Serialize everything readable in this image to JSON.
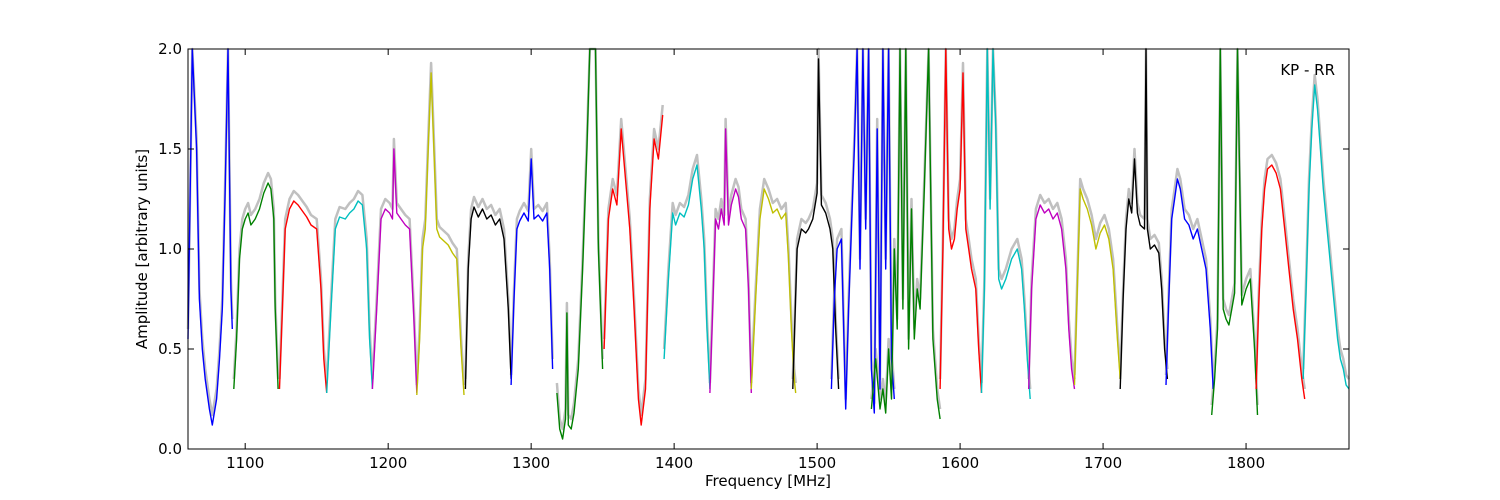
{
  "chart_data": {
    "type": "line",
    "title": "",
    "annotation": "KP - RR",
    "xlabel": "Frequency [MHz]",
    "ylabel": "Amplitude [arbitrary units]",
    "xlim": [
      1060,
      1872
    ],
    "ylim": [
      0.0,
      2.0
    ],
    "x_ticks": [
      1100,
      1200,
      1300,
      1400,
      1500,
      1600,
      1700,
      1800
    ],
    "x_tick_labels": [
      "1100",
      "1200",
      "1300",
      "1400",
      "1500",
      "1600",
      "1700",
      "1800"
    ],
    "y_ticks": [
      0.0,
      0.5,
      1.0,
      1.5,
      2.0
    ],
    "y_tick_labels": [
      "0.0",
      "0.5",
      "1.0",
      "1.5",
      "2.0"
    ],
    "grid": false,
    "legend": "none",
    "background_trace_color": "#c0c0c0",
    "series": [
      {
        "color": "#0000ff",
        "x": [
          1060,
          1063,
          1066,
          1068,
          1070,
          1072,
          1075,
          1077,
          1080,
          1082,
          1084,
          1086,
          1088,
          1090,
          1091
        ],
        "y": [
          0.55,
          2.0,
          1.5,
          0.75,
          0.5,
          0.35,
          0.2,
          0.12,
          0.25,
          0.45,
          0.7,
          1.3,
          2.0,
          0.8,
          0.6
        ]
      },
      {
        "color": "#008000",
        "x": [
          1092,
          1094,
          1096,
          1098,
          1100,
          1102,
          1104,
          1107,
          1110,
          1113,
          1116,
          1118,
          1120,
          1121,
          1123
        ],
        "y": [
          0.3,
          0.55,
          0.95,
          1.1,
          1.15,
          1.18,
          1.12,
          1.15,
          1.2,
          1.28,
          1.33,
          1.3,
          1.15,
          0.7,
          0.3
        ]
      },
      {
        "color": "#ff0000",
        "x": [
          1124,
          1126,
          1128,
          1131,
          1134,
          1137,
          1140,
          1143,
          1146,
          1150,
          1153,
          1155,
          1157
        ],
        "y": [
          0.3,
          0.7,
          1.1,
          1.2,
          1.24,
          1.22,
          1.19,
          1.16,
          1.12,
          1.1,
          0.8,
          0.45,
          0.28
        ]
      },
      {
        "color": "#00bfbf",
        "x": [
          1157,
          1160,
          1163,
          1166,
          1170,
          1173,
          1176,
          1179,
          1182,
          1185,
          1187,
          1189
        ],
        "y": [
          0.28,
          0.7,
          1.1,
          1.16,
          1.15,
          1.18,
          1.2,
          1.24,
          1.22,
          1.0,
          0.55,
          0.3
        ]
      },
      {
        "color": "#bf00bf",
        "x": [
          1189,
          1192,
          1195,
          1198,
          1201,
          1203,
          1204,
          1206,
          1209,
          1212,
          1215,
          1218,
          1220
        ],
        "y": [
          0.3,
          0.7,
          1.15,
          1.2,
          1.18,
          1.15,
          1.5,
          1.18,
          1.15,
          1.12,
          1.1,
          0.65,
          0.28
        ]
      },
      {
        "color": "#bfbf00",
        "x": [
          1220,
          1222,
          1224,
          1226,
          1228,
          1230,
          1232,
          1234,
          1236,
          1239,
          1242,
          1245,
          1248,
          1251,
          1253
        ],
        "y": [
          0.27,
          0.55,
          1.0,
          1.1,
          1.5,
          1.88,
          1.5,
          1.1,
          1.06,
          1.04,
          1.02,
          0.98,
          0.95,
          0.5,
          0.27
        ]
      },
      {
        "color": "#000000",
        "x": [
          1254,
          1256,
          1258,
          1260,
          1263,
          1266,
          1269,
          1272,
          1275,
          1278,
          1281,
          1284,
          1286
        ],
        "y": [
          0.3,
          0.9,
          1.15,
          1.21,
          1.16,
          1.2,
          1.15,
          1.17,
          1.12,
          1.15,
          1.05,
          0.7,
          0.35
        ]
      },
      {
        "color": "#0000ff",
        "x": [
          1286,
          1288,
          1290,
          1292,
          1295,
          1298,
          1300,
          1302,
          1305,
          1308,
          1311,
          1313,
          1315
        ],
        "y": [
          0.32,
          0.75,
          1.1,
          1.14,
          1.18,
          1.14,
          1.45,
          1.15,
          1.17,
          1.14,
          1.18,
          0.9,
          0.4
        ]
      },
      {
        "color": "#008000",
        "x": [
          1318,
          1320,
          1322,
          1324,
          1325,
          1326,
          1328,
          1330,
          1333,
          1336,
          1339,
          1341,
          1343,
          1345,
          1347,
          1350
        ],
        "y": [
          0.28,
          0.1,
          0.05,
          0.15,
          0.68,
          0.12,
          0.1,
          0.18,
          0.4,
          0.9,
          1.5,
          2.0,
          2.0,
          2.0,
          1.0,
          0.4
        ]
      },
      {
        "color": "#ff0000",
        "x": [
          1351,
          1354,
          1357,
          1360,
          1363,
          1366,
          1369,
          1372,
          1375,
          1377,
          1380,
          1383,
          1386,
          1389,
          1392
        ],
        "y": [
          0.5,
          1.15,
          1.3,
          1.22,
          1.6,
          1.35,
          1.1,
          0.7,
          0.25,
          0.12,
          0.3,
          1.2,
          1.55,
          1.45,
          1.67
        ]
      },
      {
        "color": "#00bfbf",
        "x": [
          1393,
          1396,
          1399,
          1401,
          1404,
          1407,
          1410,
          1413,
          1416,
          1419,
          1421,
          1423,
          1425
        ],
        "y": [
          0.45,
          0.85,
          1.18,
          1.12,
          1.18,
          1.16,
          1.22,
          1.35,
          1.42,
          1.2,
          1.0,
          0.6,
          0.3
        ]
      },
      {
        "color": "#bf00bf",
        "x": [
          1425,
          1427,
          1429,
          1431,
          1433,
          1435,
          1436,
          1438,
          1440,
          1443,
          1445,
          1447,
          1450,
          1452,
          1454
        ],
        "y": [
          0.28,
          0.7,
          1.15,
          1.1,
          1.2,
          1.12,
          1.6,
          1.12,
          1.22,
          1.3,
          1.26,
          1.15,
          1.1,
          0.8,
          0.28
        ]
      },
      {
        "color": "#bfbf00",
        "x": [
          1454,
          1457,
          1460,
          1463,
          1466,
          1469,
          1472,
          1475,
          1478,
          1480,
          1482,
          1484,
          1485
        ],
        "y": [
          0.3,
          0.75,
          1.15,
          1.3,
          1.25,
          1.18,
          1.2,
          1.15,
          1.18,
          0.95,
          0.6,
          0.35,
          0.28
        ]
      },
      {
        "color": "#000000",
        "x": [
          1483,
          1486,
          1489,
          1492,
          1494,
          1497,
          1500,
          1501,
          1503,
          1506,
          1509,
          1511,
          1513,
          1515
        ],
        "y": [
          0.3,
          1.0,
          1.1,
          1.08,
          1.1,
          1.15,
          1.28,
          1.95,
          1.22,
          1.18,
          1.1,
          1.0,
          0.6,
          0.3
        ]
      },
      {
        "color": "#0000ff",
        "x": [
          1510,
          1512,
          1514,
          1517,
          1520,
          1522,
          1524,
          1526,
          1528,
          1530,
          1532,
          1534,
          1536,
          1538,
          1540,
          1542,
          1544,
          1546,
          1548,
          1550,
          1552,
          1554
        ],
        "y": [
          0.3,
          0.75,
          1.0,
          1.05,
          0.2,
          0.7,
          1.1,
          1.5,
          2.0,
          0.9,
          2.0,
          1.1,
          2.0,
          0.4,
          0.18,
          1.6,
          0.3,
          2.0,
          0.9,
          2.0,
          0.45,
          0.25
        ]
      },
      {
        "color": "#008000",
        "x": [
          1538,
          1541,
          1544,
          1546,
          1548,
          1550,
          1552,
          1554,
          1556,
          1558,
          1560,
          1562,
          1564,
          1566,
          1568,
          1570,
          1572,
          1575,
          1578,
          1581,
          1584,
          1586
        ],
        "y": [
          0.2,
          0.45,
          0.2,
          0.3,
          0.18,
          0.5,
          0.25,
          1.0,
          0.6,
          2.0,
          0.7,
          2.0,
          0.5,
          1.2,
          0.55,
          0.8,
          0.7,
          1.3,
          2.0,
          0.55,
          0.25,
          0.15
        ]
      },
      {
        "color": "#ff0000",
        "x": [
          1586,
          1588,
          1590,
          1592,
          1594,
          1596,
          1598,
          1600,
          1602,
          1604,
          1606,
          1608,
          1611,
          1613,
          1615
        ],
        "y": [
          0.3,
          1.0,
          2.0,
          1.1,
          1.0,
          1.05,
          1.2,
          1.3,
          1.88,
          1.1,
          1.0,
          0.9,
          0.8,
          0.5,
          0.28
        ]
      },
      {
        "color": "#00bfbf",
        "x": [
          1615,
          1617,
          1619,
          1621,
          1623,
          1625,
          1627,
          1629,
          1632,
          1636,
          1640,
          1643,
          1645,
          1647,
          1649
        ],
        "y": [
          0.28,
          0.8,
          2.0,
          1.2,
          2.0,
          1.6,
          0.85,
          0.8,
          0.85,
          0.95,
          1.0,
          0.9,
          0.7,
          0.45,
          0.25
        ]
      },
      {
        "color": "#bf00bf",
        "x": [
          1648,
          1650,
          1653,
          1656,
          1659,
          1662,
          1665,
          1668,
          1671,
          1674,
          1676,
          1678,
          1680
        ],
        "y": [
          0.3,
          0.8,
          1.15,
          1.22,
          1.18,
          1.2,
          1.15,
          1.18,
          1.1,
          0.9,
          0.6,
          0.4,
          0.3
        ]
      },
      {
        "color": "#bfbf00",
        "x": [
          1680,
          1682,
          1684,
          1686,
          1689,
          1692,
          1695,
          1698,
          1701,
          1704,
          1707,
          1710,
          1712
        ],
        "y": [
          0.32,
          0.8,
          1.3,
          1.25,
          1.2,
          1.12,
          1.0,
          1.08,
          1.12,
          1.05,
          0.9,
          0.55,
          0.35
        ]
      },
      {
        "color": "#000000",
        "x": [
          1712,
          1714,
          1716,
          1718,
          1720,
          1722,
          1724,
          1726,
          1729,
          1730,
          1731,
          1733,
          1736,
          1739,
          1741,
          1743,
          1745
        ],
        "y": [
          0.3,
          0.75,
          1.1,
          1.25,
          1.18,
          1.45,
          1.18,
          1.12,
          1.1,
          2.0,
          1.1,
          1.0,
          1.02,
          0.98,
          0.8,
          0.5,
          0.35
        ]
      },
      {
        "color": "#0000ff",
        "x": [
          1744,
          1746,
          1748,
          1750,
          1752,
          1754,
          1757,
          1760,
          1763,
          1766,
          1769,
          1772,
          1775,
          1777
        ],
        "y": [
          0.32,
          0.75,
          1.15,
          1.25,
          1.35,
          1.3,
          1.15,
          1.12,
          1.05,
          1.1,
          1.0,
          0.9,
          0.6,
          0.3
        ]
      },
      {
        "color": "#008000",
        "x": [
          1776,
          1778,
          1780,
          1782,
          1784,
          1786,
          1788,
          1790,
          1792,
          1794,
          1797,
          1800,
          1803,
          1806,
          1808
        ],
        "y": [
          0.17,
          0.35,
          0.6,
          2.0,
          0.7,
          0.65,
          0.62,
          0.7,
          0.78,
          2.0,
          0.72,
          0.8,
          0.85,
          0.5,
          0.17
        ]
      },
      {
        "color": "#ff0000",
        "x": [
          1807,
          1809,
          1811,
          1813,
          1815,
          1818,
          1821,
          1824,
          1827,
          1830,
          1833,
          1836,
          1839,
          1841
        ],
        "y": [
          0.3,
          0.75,
          1.1,
          1.3,
          1.4,
          1.42,
          1.38,
          1.3,
          1.1,
          0.9,
          0.7,
          0.55,
          0.35,
          0.25
        ]
      },
      {
        "color": "#00bfbf",
        "x": [
          1840,
          1842,
          1844,
          1846,
          1848,
          1850,
          1852,
          1854,
          1856,
          1858,
          1860,
          1862,
          1864,
          1866,
          1868,
          1870,
          1872
        ],
        "y": [
          0.35,
          0.8,
          1.3,
          1.6,
          1.82,
          1.7,
          1.5,
          1.3,
          1.15,
          1.0,
          0.85,
          0.7,
          0.55,
          0.45,
          0.4,
          0.32,
          0.3
        ]
      }
    ]
  }
}
